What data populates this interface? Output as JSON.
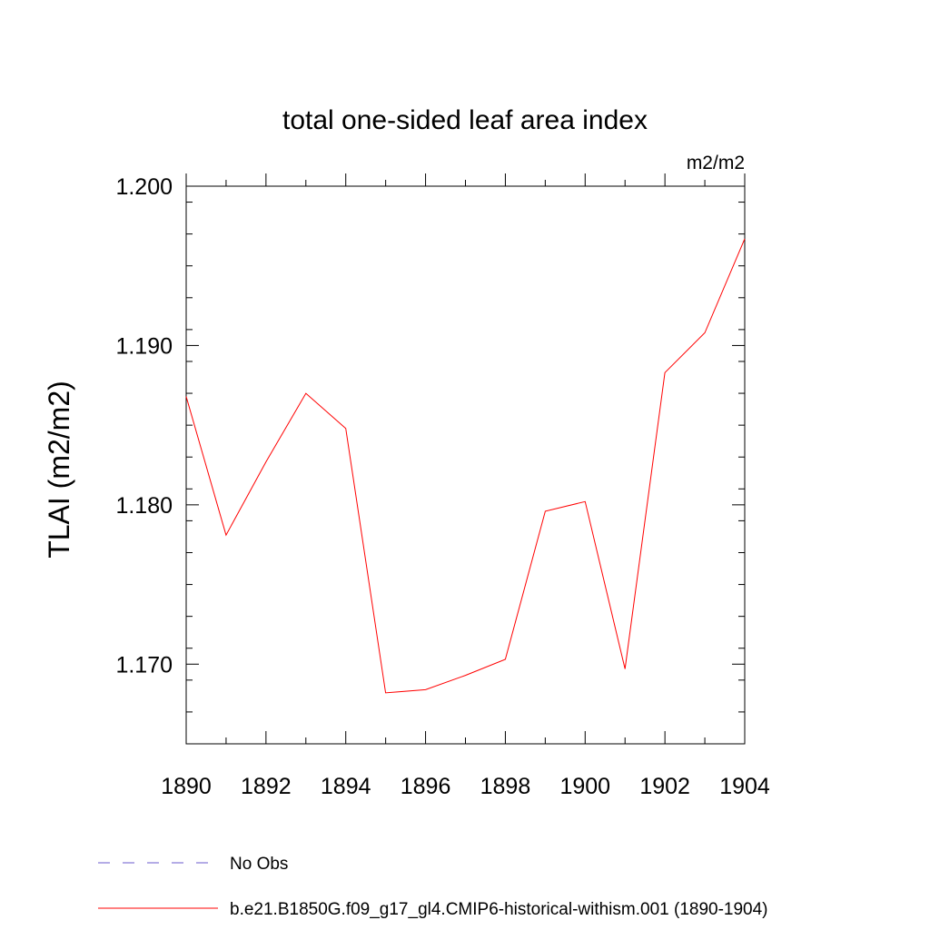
{
  "chart_data": {
    "type": "line",
    "title": "total one-sided leaf area index",
    "units_label": "m2/m2",
    "ylabel": "TLAI  (m2/m2)",
    "xlabel": "",
    "xlim": [
      1890,
      1904
    ],
    "ylim": [
      1.165,
      1.2
    ],
    "x_ticks": [
      1890,
      1892,
      1894,
      1896,
      1898,
      1900,
      1902,
      1904
    ],
    "x_tick_labels": [
      "1890",
      "1892",
      "1894",
      "1896",
      "1898",
      "1900",
      "1902",
      "1904"
    ],
    "y_ticks": [
      1.17,
      1.18,
      1.19,
      1.2
    ],
    "y_tick_labels": [
      "1.170",
      "1.180",
      "1.190",
      "1.200"
    ],
    "x": [
      1890,
      1891,
      1892,
      1893,
      1894,
      1895,
      1896,
      1897,
      1898,
      1899,
      1900,
      1901,
      1902,
      1903,
      1904
    ],
    "series": [
      {
        "name": "b.e21.B1850G.f09_g17_gl4.CMIP6-historical-withism.001 (1890-1904)",
        "color": "#ff0000",
        "values": [
          1.1868,
          1.1781,
          1.1827,
          1.187,
          1.1848,
          1.1682,
          1.1684,
          1.1693,
          1.1703,
          1.1796,
          1.1802,
          1.1697,
          1.1883,
          1.1908,
          1.1967
        ]
      }
    ],
    "legend": {
      "placement": "bottom-left",
      "entries": [
        {
          "label": "No Obs",
          "color": "#6a5acd",
          "style": "dashed"
        },
        {
          "label": "b.e21.B1850G.f09_g17_gl4.CMIP6-historical-withism.001 (1890-1904)",
          "color": "#ff0000",
          "style": "solid"
        }
      ]
    }
  }
}
